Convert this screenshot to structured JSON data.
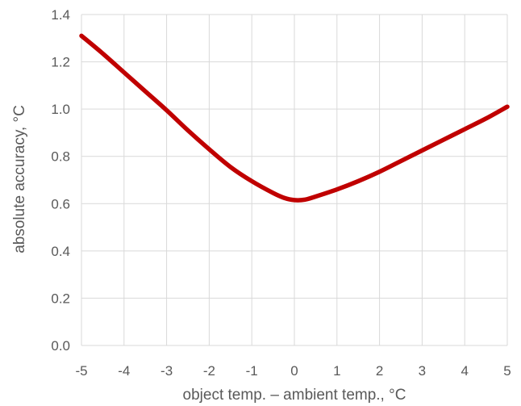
{
  "chart_data": {
    "type": "line",
    "title": "",
    "xlabel": "object temp. – ambient temp., °C",
    "ylabel": "absolute accuracy, °C",
    "xlim": [
      -5,
      5
    ],
    "ylim": [
      0,
      1.4
    ],
    "xticks": [
      "-5",
      "-4",
      "-3",
      "-2",
      "-1",
      "0",
      "1",
      "2",
      "3",
      "4",
      "5"
    ],
    "yticks": [
      "0.0",
      "0.2",
      "0.4",
      "0.6",
      "0.8",
      "1.0",
      "1.2",
      "1.4"
    ],
    "grid": true,
    "series": [
      {
        "color": "#c00000",
        "x": [
          -5,
          -4.5,
          -4,
          -3.5,
          -3,
          -2.5,
          -2,
          -1.5,
          -1,
          -0.5,
          -0.25,
          0,
          0.25,
          0.5,
          1,
          1.5,
          2,
          2.5,
          3,
          3.5,
          4,
          4.5,
          5
        ],
        "y": [
          1.31,
          1.235,
          1.155,
          1.075,
          0.995,
          0.91,
          0.83,
          0.755,
          0.695,
          0.645,
          0.625,
          0.615,
          0.617,
          0.63,
          0.66,
          0.695,
          0.735,
          0.78,
          0.825,
          0.87,
          0.915,
          0.96,
          1.01
        ]
      }
    ]
  }
}
